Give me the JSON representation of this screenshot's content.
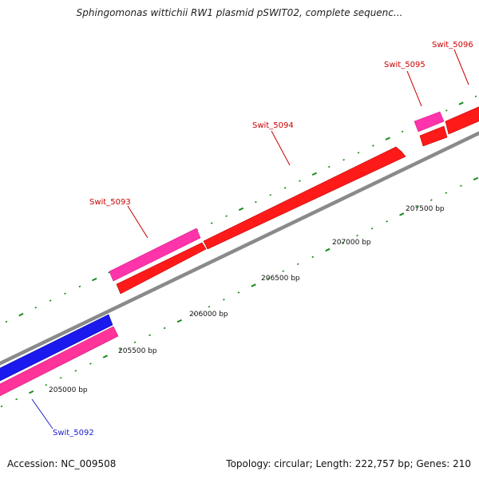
{
  "title": "Sphingomonas wittichii RW1 plasmid pSWIT02, complete sequenc...",
  "footer": {
    "accession": "Accession: NC_009508",
    "topology": "Topology: circular; Length: 222,757 bp; Genes: 210"
  },
  "ruler": {
    "labels": [
      "205000 bp",
      "205500 bp",
      "206000 bp",
      "206500 bp",
      "207000 bp",
      "207500 bp"
    ]
  },
  "genes": [
    {
      "name": "Swit_5092",
      "color": "#0000cc"
    },
    {
      "name": "Swit_5093",
      "color": "#cc0000"
    },
    {
      "name": "Swit_5094",
      "color": "#cc0000"
    },
    {
      "name": "Swit_5095",
      "color": "#cc0000"
    },
    {
      "name": "Swit_5096",
      "color": "#cc0000"
    }
  ],
  "colors": {
    "backbone": "#8a8a8a",
    "forward_cds": "#ff1a1a",
    "forward_gene": "#ff33aa",
    "reverse_cds": "#1a1aee",
    "reverse_gene": "#ff3399",
    "tick": "#1a8a1a"
  }
}
